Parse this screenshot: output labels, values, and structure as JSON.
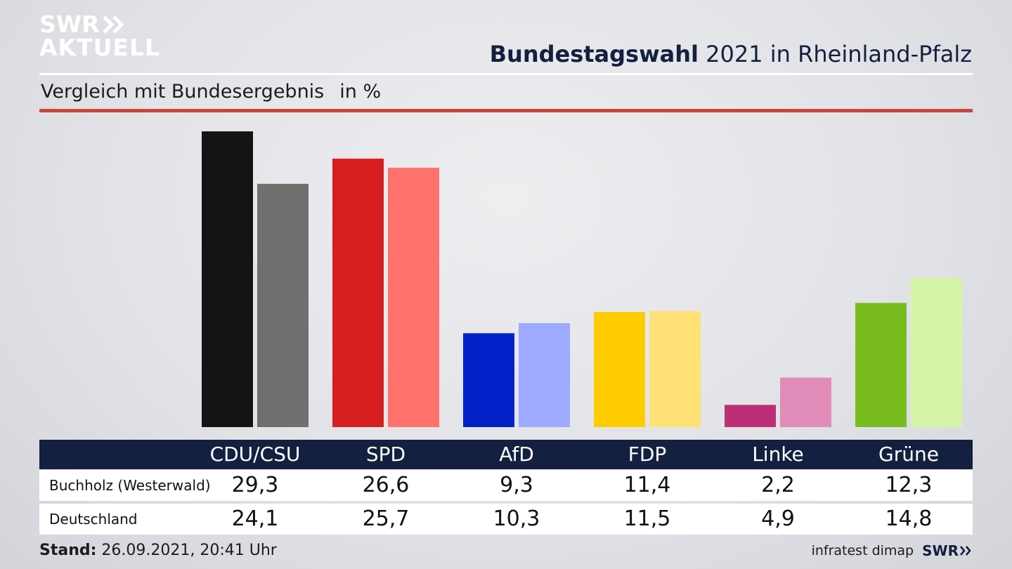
{
  "logo": {
    "line1": "SWR",
    "line2": "AKTUELL"
  },
  "header": {
    "title_bold": "Bundestagswahl",
    "title_rest": "2021 in Rheinland-Pfalz",
    "subtitle": "Vergleich mit Bundesergebnis",
    "unit": "in %"
  },
  "chart_data": {
    "type": "bar",
    "categories": [
      "CDU/CSU",
      "SPD",
      "AfD",
      "FDP",
      "Linke",
      "Grüne"
    ],
    "series": [
      {
        "name": "Buchholz (Westerwald)",
        "values": [
          29.3,
          26.6,
          9.3,
          11.4,
          2.2,
          12.3
        ]
      },
      {
        "name": "Deutschland",
        "values": [
          24.1,
          25.7,
          10.3,
          11.5,
          4.9,
          14.8
        ]
      }
    ],
    "colors": {
      "Buchholz (Westerwald)": [
        "#141414",
        "#d71f1f",
        "#0022c8",
        "#ffcc00",
        "#be2d78",
        "#78bc20"
      ],
      "Deutschland": [
        "#706f6d",
        "#fe716c",
        "#9eaaff",
        "#ffe175",
        "#e08bb8",
        "#d4f5a8"
      ]
    },
    "ylim": [
      0,
      29.3
    ],
    "grid": false
  },
  "table": {
    "rows": [
      {
        "label": "Buchholz (Westerwald)",
        "values": [
          "29,3",
          "26,6",
          "9,3",
          "11,4",
          "2,2",
          "12,3"
        ]
      },
      {
        "label": "Deutschland",
        "values": [
          "24,1",
          "25,7",
          "10,3",
          "11,5",
          "4,9",
          "14,8"
        ]
      }
    ]
  },
  "footer": {
    "stand_label": "Stand:",
    "stand_value": "26.09.2021, 20:41 Uhr",
    "source": "infratest dimap",
    "brand": "SWR"
  },
  "accent": {
    "navy": "#13203f",
    "red_rule": "#c9463a"
  }
}
